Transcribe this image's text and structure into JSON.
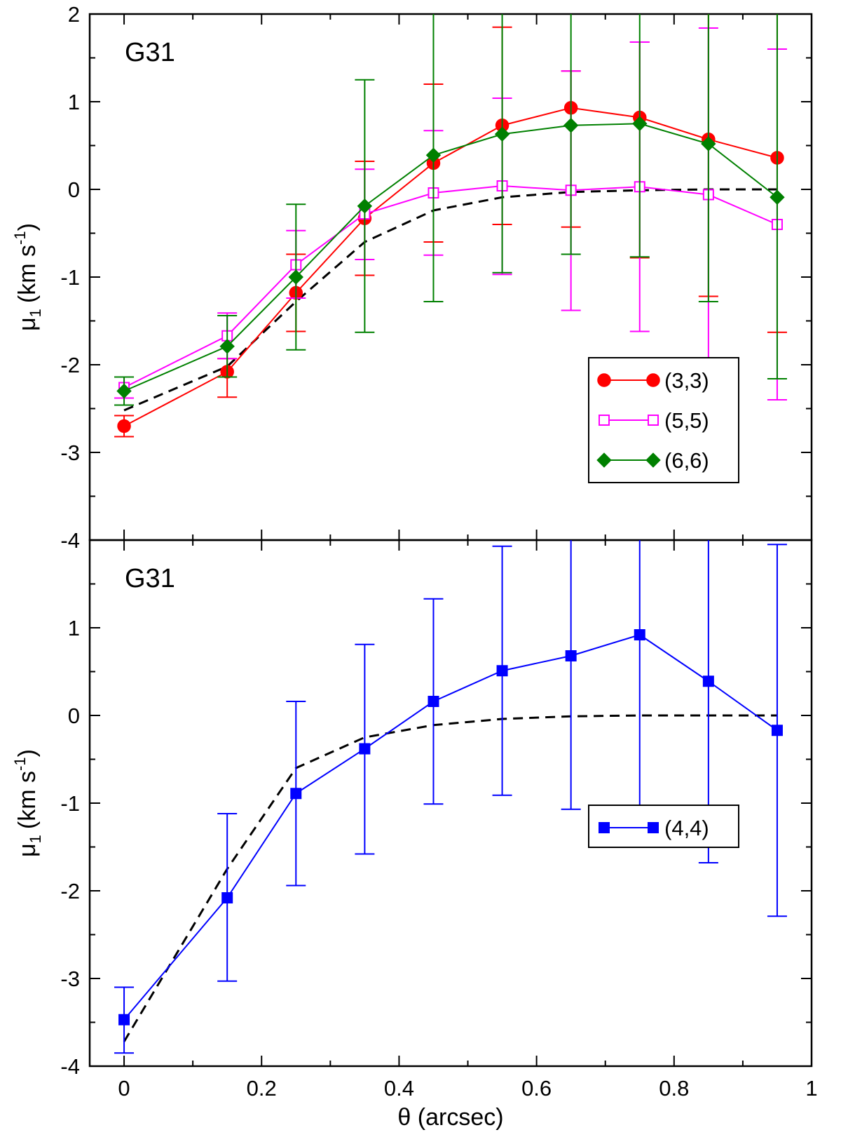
{
  "chart_data": [
    {
      "type": "line",
      "panel_label": "G31",
      "xlabel": "θ (arcsec)",
      "ylabel": "μ",
      "ylabel_sub": "1",
      "ylabel_units_pre": "(km s",
      "ylabel_units_sup": "-1",
      "ylabel_units_post": ")",
      "xlim": [
        -0.05,
        1.0
      ],
      "ylim": [
        -4,
        2
      ],
      "xticks": [
        0,
        0.2,
        0.4,
        0.6,
        0.8,
        1
      ],
      "xtick_labels": [
        "0",
        "0.2",
        "0.4",
        "0.6",
        "0.8",
        "1"
      ],
      "yticks": [
        -4,
        -3,
        -2,
        -1,
        0,
        1,
        2
      ],
      "ytick_labels": [
        "-4",
        "-3",
        "-2",
        "-1",
        "0",
        "1",
        "2"
      ],
      "legend_position": "lower-right",
      "x": [
        0,
        0.15,
        0.25,
        0.35,
        0.45,
        0.55,
        0.65,
        0.75,
        0.85,
        0.95
      ],
      "series": [
        {
          "name": "(3,3)",
          "color": "#ff0000",
          "marker": "circle-filled",
          "values": [
            -2.7,
            -2.08,
            -1.18,
            -0.33,
            0.3,
            0.73,
            0.93,
            0.82,
            0.57,
            0.36
          ],
          "err_low": [
            -2.82,
            -2.37,
            -1.62,
            -0.98,
            -0.6,
            -0.4,
            -0.43,
            -0.78,
            -1.22,
            -1.63
          ],
          "err_high": [
            -2.58,
            -1.93,
            -0.74,
            0.32,
            1.2,
            1.85,
            1.35,
            1.68,
            2.0,
            2.0
          ]
        },
        {
          "name": "(5,5)",
          "color": "#ff00ff",
          "marker": "square-open",
          "values": [
            -2.26,
            -1.67,
            -0.86,
            -0.28,
            -0.04,
            0.04,
            -0.01,
            0.03,
            -0.06,
            -0.4
          ],
          "err_low": [
            -2.38,
            -1.93,
            -1.24,
            -0.8,
            -0.75,
            -0.97,
            -1.38,
            -1.62,
            -2.0,
            -2.4
          ],
          "err_high": [
            -2.14,
            -1.41,
            -0.47,
            0.23,
            0.67,
            1.04,
            1.35,
            1.68,
            1.84,
            1.6
          ]
        },
        {
          "name": "(6,6)",
          "color": "#008000",
          "marker": "diamond-filled",
          "values": [
            -2.3,
            -1.79,
            -1.0,
            -0.19,
            0.39,
            0.63,
            0.73,
            0.75,
            0.52,
            -0.09
          ],
          "err_low": [
            -2.46,
            -2.14,
            -1.83,
            -1.63,
            -1.28,
            -0.95,
            -0.74,
            -0.77,
            -1.28,
            -2.16
          ],
          "err_high": [
            -2.14,
            -1.44,
            -0.17,
            1.25,
            2.0,
            2.0,
            2.0,
            2.0,
            2.0,
            2.0
          ]
        }
      ],
      "model": {
        "style": "dashed",
        "color": "#000000",
        "x": [
          0,
          0.15,
          0.25,
          0.35,
          0.45,
          0.55,
          0.65,
          0.75,
          0.85,
          0.95
        ],
        "values": [
          -2.52,
          -2.02,
          -1.28,
          -0.6,
          -0.24,
          -0.09,
          -0.03,
          -0.01,
          0.0,
          0.0
        ]
      }
    },
    {
      "type": "line",
      "panel_label": "G31",
      "xlabel": "θ (arcsec)",
      "ylabel": "μ",
      "ylabel_sub": "1",
      "ylabel_units_pre": "(km s",
      "ylabel_units_sup": "-1",
      "ylabel_units_post": ")",
      "xlim": [
        -0.05,
        1.0
      ],
      "ylim": [
        -4,
        2
      ],
      "xticks": [
        0,
        0.2,
        0.4,
        0.6,
        0.8,
        1
      ],
      "xtick_labels": [
        "0",
        "0.2",
        "0.4",
        "0.6",
        "0.8",
        "1"
      ],
      "yticks": [
        -4,
        -3,
        -2,
        -1,
        0,
        1
      ],
      "ytick_labels": [
        "-4",
        "-3",
        "-2",
        "-1",
        "0",
        "1"
      ],
      "legend_position": "lower-right",
      "x": [
        0,
        0.15,
        0.25,
        0.35,
        0.45,
        0.55,
        0.65,
        0.75,
        0.85,
        0.95
      ],
      "series": [
        {
          "name": "(4,4)",
          "color": "#0000ff",
          "marker": "square-filled",
          "values": [
            -3.47,
            -2.08,
            -0.89,
            -0.38,
            0.16,
            0.51,
            0.68,
            0.92,
            0.39,
            -0.17
          ],
          "err_low": [
            -3.85,
            -3.03,
            -1.94,
            -1.58,
            -1.01,
            -0.91,
            -1.07,
            -1.08,
            -1.68,
            -2.29
          ],
          "err_high": [
            -3.1,
            -1.12,
            0.16,
            0.81,
            1.33,
            1.93,
            2.0,
            2.0,
            2.0,
            1.95
          ]
        }
      ],
      "model": {
        "style": "dashed",
        "color": "#000000",
        "x": [
          0,
          0.15,
          0.25,
          0.35,
          0.45,
          0.55,
          0.65,
          0.75,
          0.85,
          0.95
        ],
        "values": [
          -3.72,
          -1.75,
          -0.6,
          -0.25,
          -0.11,
          -0.04,
          -0.01,
          0.0,
          0.0,
          0.0
        ]
      }
    }
  ]
}
